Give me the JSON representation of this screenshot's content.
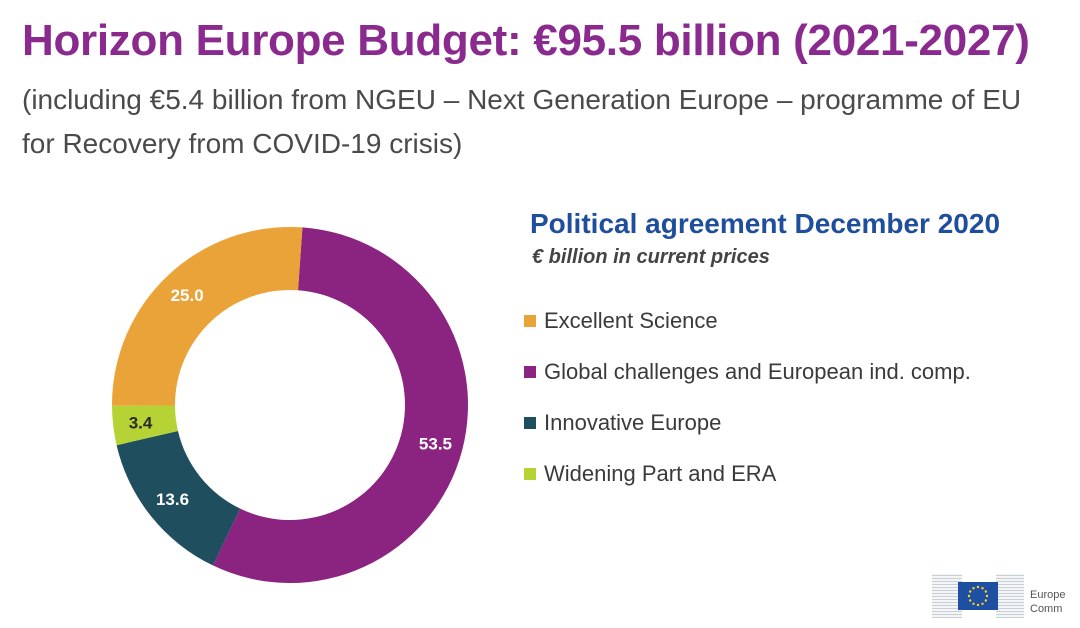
{
  "header": {
    "title": "Horizon Europe Budget: €95.5 billion (2021-2027)",
    "subtitle": "(including €5.4 billion from NGEU – Next Generation Europe – programme of EU for Recovery from COVID-19 crisis)"
  },
  "legend": {
    "title": "Political agreement December 2020",
    "subtitle": "€ billion in current prices"
  },
  "logo": {
    "line1": "Europe",
    "line2": "Comm"
  },
  "chart_data": {
    "type": "pie",
    "variant": "donut",
    "categories": [
      "Excellent Science",
      "Global challenges and European ind. comp.",
      "Innovative Europe",
      "Widening Part and ERA"
    ],
    "values": [
      25.0,
      53.5,
      13.6,
      3.4
    ],
    "labels": [
      "25.0",
      "53.5",
      "13.6",
      "3.4"
    ],
    "colors": [
      "#eaa338",
      "#8b2381",
      "#1f4e5f",
      "#b5d335"
    ],
    "label_colors": [
      "#ffffff",
      "#ffffff",
      "#ffffff",
      "#2a2a2a"
    ],
    "start_value_clockwise_from_top": "Global challenges and European ind. comp.",
    "legend_position": "right"
  }
}
